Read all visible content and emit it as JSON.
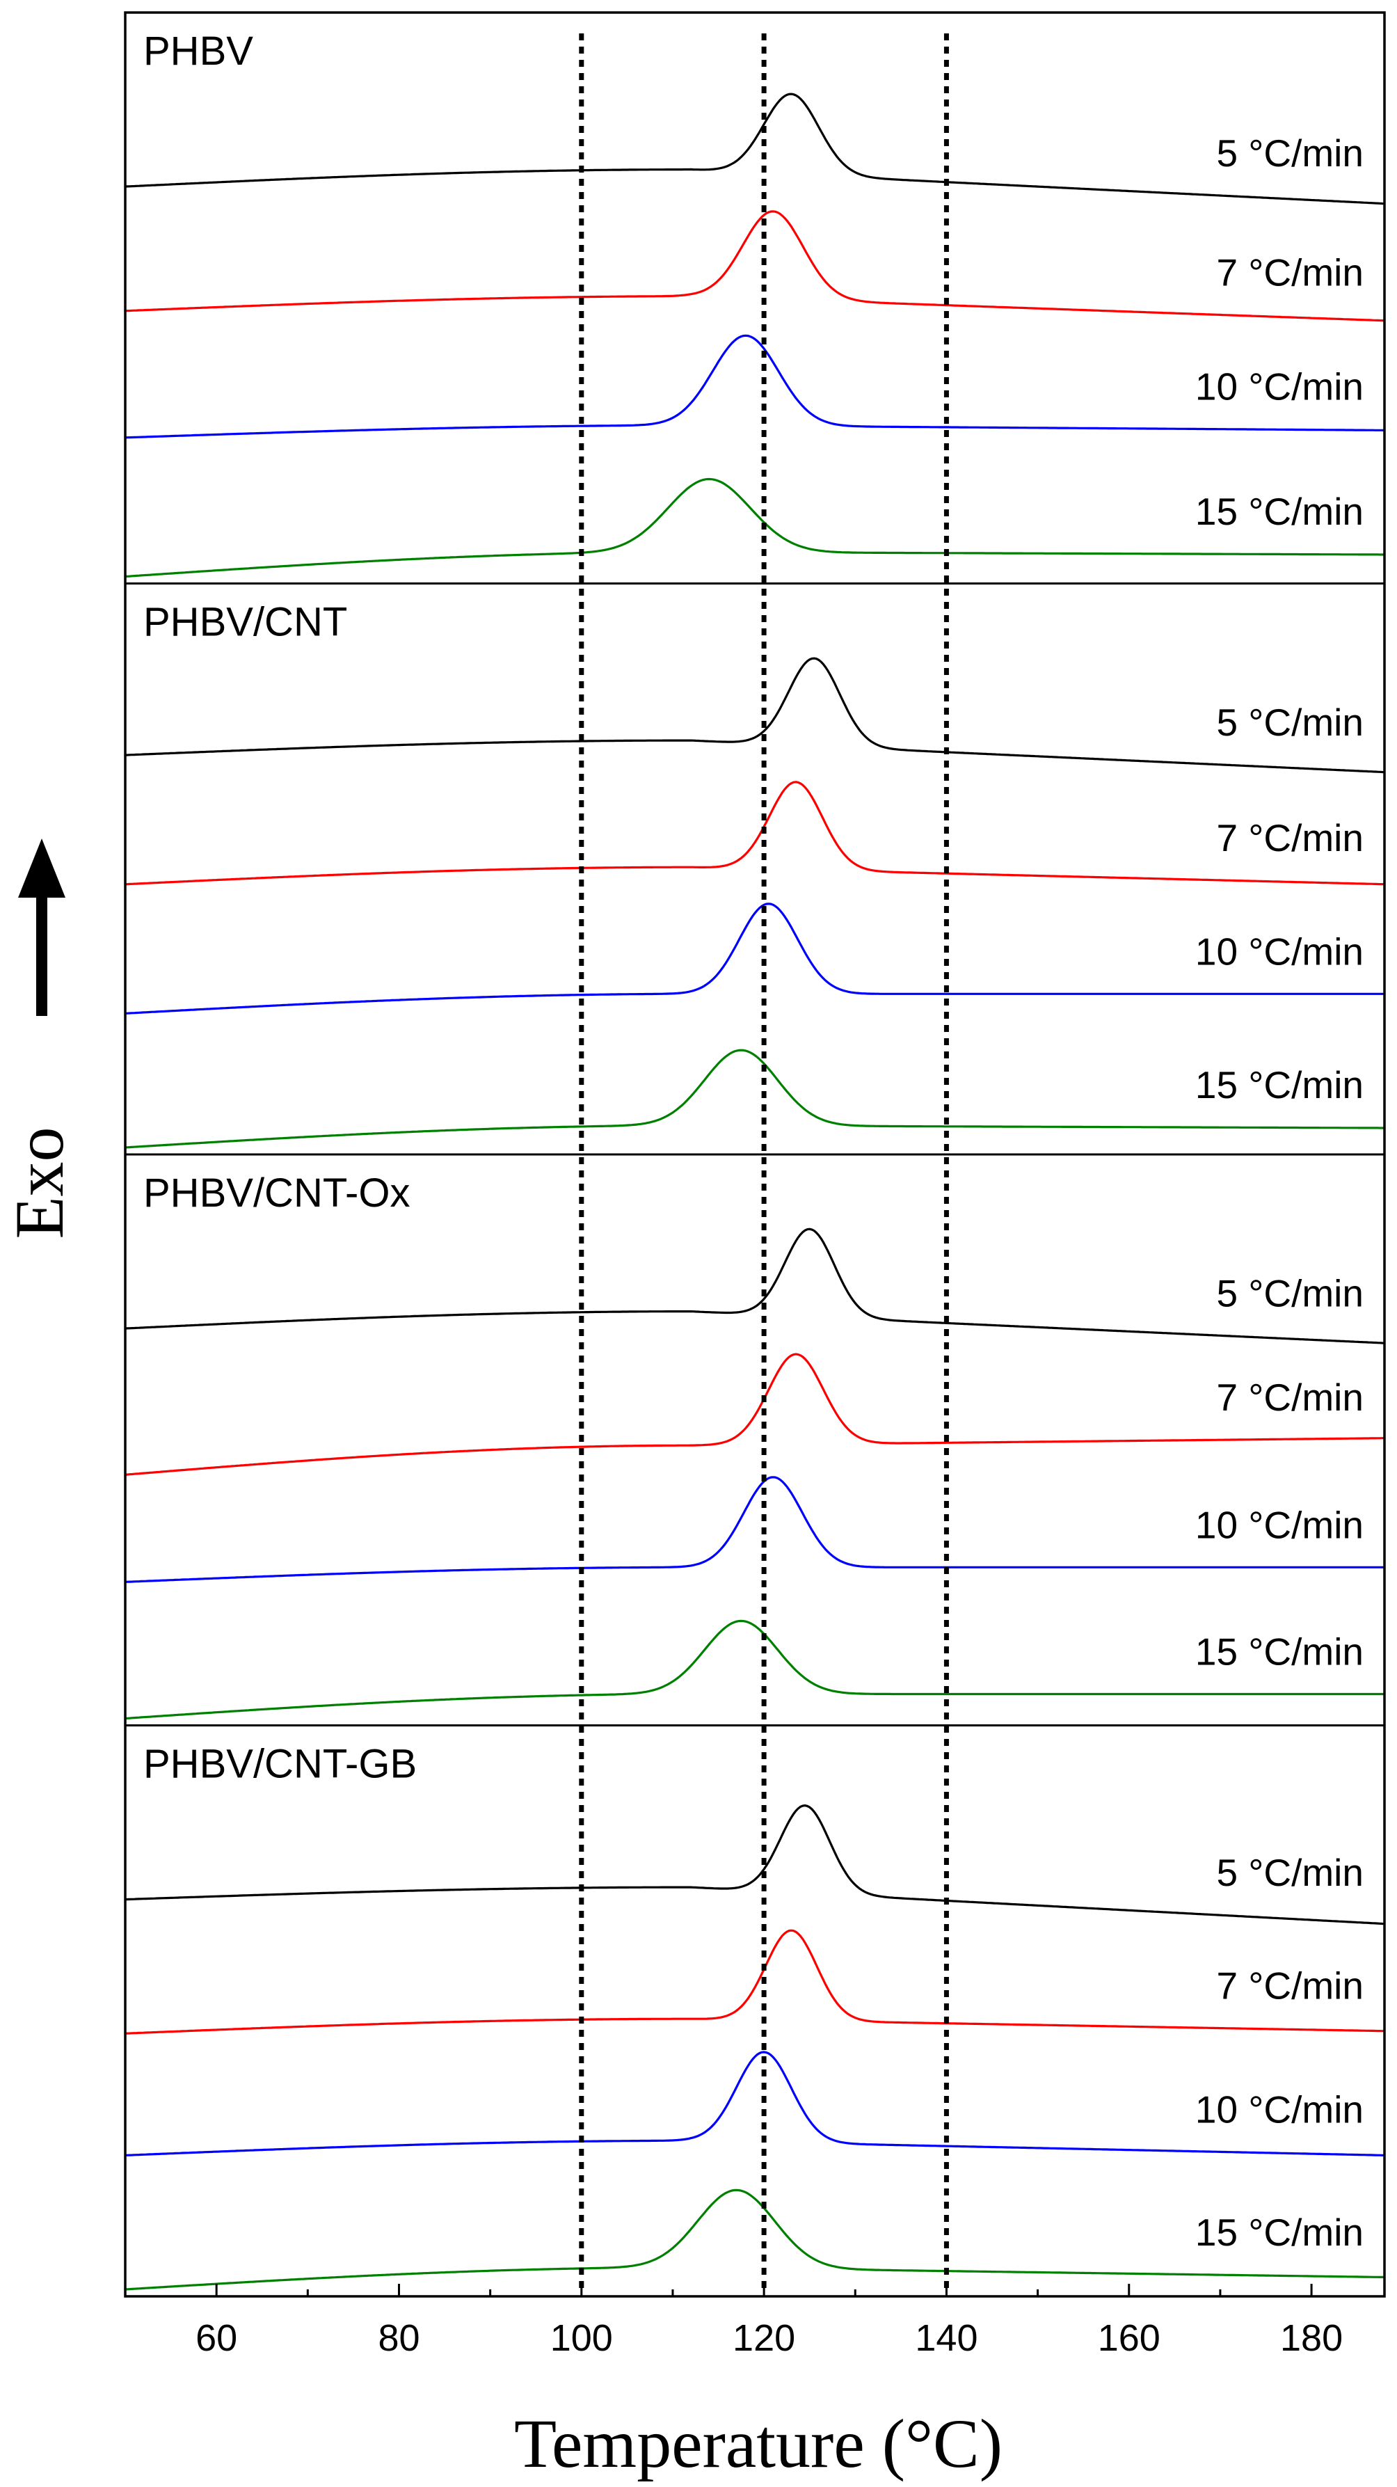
{
  "chart_data": {
    "type": "line",
    "xlabel": "Temperature (°C)",
    "ylabel": "Exo",
    "xlim": [
      50,
      188
    ],
    "xticks": [
      "60",
      "80",
      "100",
      "120",
      "140",
      "160",
      "180"
    ],
    "xtick_values": [
      60,
      80,
      100,
      120,
      140,
      160,
      180
    ],
    "reference_lines_x": [
      100,
      120,
      140
    ],
    "grid": false,
    "colors": {
      "5": "#000000",
      "7": "#ff0000",
      "10": "#0000ff",
      "15": "#008000"
    },
    "panels": [
      {
        "title": "PHBV",
        "series": [
          {
            "name": "5 °C/min",
            "color": "#000000",
            "peak_x": 123,
            "peak_width": 3.0,
            "baseline_left": 0.2,
            "baseline_mid": 0.34,
            "baseline_right": 0.06,
            "peak_height": 0.66
          },
          {
            "name": "7 °C/min",
            "color": "#ff0000",
            "peak_x": 121,
            "peak_width": 3.3,
            "baseline_left": 0.18,
            "baseline_mid": 0.3,
            "baseline_right": 0.1,
            "peak_height": 0.72
          },
          {
            "name": "10 °C/min",
            "color": "#0000ff",
            "peak_x": 118,
            "peak_width": 3.6,
            "baseline_left": 0.14,
            "baseline_mid": 0.24,
            "baseline_right": 0.2,
            "peak_height": 0.74
          },
          {
            "name": "15 °C/min",
            "color": "#008000",
            "peak_x": 114,
            "peak_width": 4.5,
            "baseline_left": 0.0,
            "baseline_mid": 0.2,
            "baseline_right": 0.18,
            "peak_height": 0.6
          }
        ]
      },
      {
        "title": "PHBV/CNT",
        "series": [
          {
            "name": "5 °C/min",
            "color": "#000000",
            "peak_x": 125.5,
            "peak_width": 2.8,
            "baseline_left": 0.22,
            "baseline_mid": 0.34,
            "baseline_right": 0.08,
            "peak_height": 0.72
          },
          {
            "name": "7 °C/min",
            "color": "#ff0000",
            "peak_x": 123.5,
            "peak_width": 2.9,
            "baseline_left": 0.16,
            "baseline_mid": 0.3,
            "baseline_right": 0.16,
            "peak_height": 0.72
          },
          {
            "name": "10 °C/min",
            "color": "#0000ff",
            "peak_x": 120.5,
            "peak_width": 3.2,
            "baseline_left": 0.1,
            "baseline_mid": 0.26,
            "baseline_right": 0.26,
            "peak_height": 0.74
          },
          {
            "name": "15 °C/min",
            "color": "#008000",
            "peak_x": 117.5,
            "peak_width": 4.0,
            "baseline_left": 0.0,
            "baseline_mid": 0.18,
            "baseline_right": 0.16,
            "peak_height": 0.62
          }
        ]
      },
      {
        "title": "PHBV/CNT-Ox",
        "series": [
          {
            "name": "5 °C/min",
            "color": "#000000",
            "peak_x": 125,
            "peak_width": 2.7,
            "baseline_left": 0.2,
            "baseline_mid": 0.34,
            "baseline_right": 0.08,
            "peak_height": 0.72
          },
          {
            "name": "7 °C/min",
            "color": "#ff0000",
            "peak_x": 123.5,
            "peak_width": 3.0,
            "baseline_left": 0.0,
            "baseline_mid": 0.24,
            "baseline_right": 0.3,
            "peak_height": 0.74
          },
          {
            "name": "10 °C/min",
            "color": "#0000ff",
            "peak_x": 121,
            "peak_width": 3.2,
            "baseline_left": 0.12,
            "baseline_mid": 0.24,
            "baseline_right": 0.24,
            "peak_height": 0.74
          },
          {
            "name": "15 °C/min",
            "color": "#008000",
            "peak_x": 117.5,
            "peak_width": 4.0,
            "baseline_left": 0.0,
            "baseline_mid": 0.2,
            "baseline_right": 0.2,
            "peak_height": 0.6
          }
        ]
      },
      {
        "title": "PHBV/CNT-GB",
        "series": [
          {
            "name": "5 °C/min",
            "color": "#000000",
            "peak_x": 124.5,
            "peak_width": 2.7,
            "baseline_left": 0.2,
            "baseline_mid": 0.3,
            "baseline_right": 0.0,
            "peak_height": 0.72
          },
          {
            "name": "7 °C/min",
            "color": "#ff0000",
            "peak_x": 123,
            "peak_width": 2.8,
            "baseline_left": 0.1,
            "baseline_mid": 0.22,
            "baseline_right": 0.12,
            "peak_height": 0.74
          },
          {
            "name": "10 °C/min",
            "color": "#0000ff",
            "peak_x": 120,
            "peak_width": 3.0,
            "baseline_left": 0.1,
            "baseline_mid": 0.22,
            "baseline_right": 0.1,
            "peak_height": 0.74
          },
          {
            "name": "15 °C/min",
            "color": "#008000",
            "peak_x": 117,
            "peak_width": 4.2,
            "baseline_left": 0.0,
            "baseline_mid": 0.18,
            "baseline_right": 0.1,
            "peak_height": 0.64
          }
        ]
      }
    ]
  }
}
